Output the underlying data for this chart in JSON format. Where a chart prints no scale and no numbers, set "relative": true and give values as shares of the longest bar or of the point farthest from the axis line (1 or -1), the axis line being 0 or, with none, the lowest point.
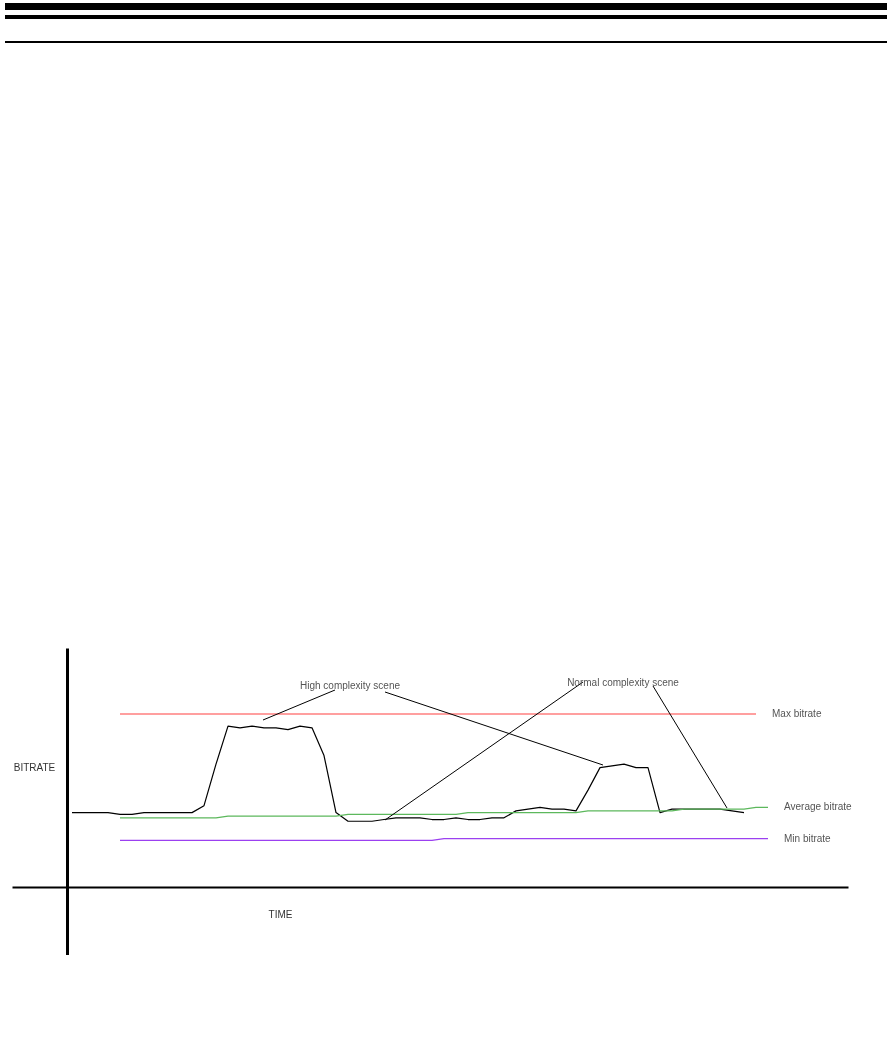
{
  "chart_data": {
    "type": "line",
    "relative": true,
    "xlabel": "TIME",
    "ylabel": "BITRATE",
    "categories": [
      null,
      null,
      null,
      null,
      null,
      null,
      null,
      null,
      null,
      null,
      null,
      null,
      null,
      null,
      null,
      null,
      null,
      null,
      null,
      null,
      null,
      null,
      null,
      null,
      null,
      null,
      null,
      null,
      null,
      null,
      null,
      null,
      null,
      null,
      null,
      null,
      null,
      null,
      null,
      null,
      null,
      null,
      null,
      null,
      null,
      null,
      null,
      null,
      null,
      null,
      null,
      null,
      null,
      null,
      null,
      null,
      null,
      null,
      null
    ],
    "series": [
      {
        "color": "#000000",
        "values": [
          0.43,
          0.43,
          0.43,
          0.43,
          0.42,
          0.42,
          0.43,
          0.43,
          0.43,
          0.43,
          0.43,
          0.47,
          0.71,
          0.93,
          0.92,
          0.93,
          0.92,
          0.92,
          0.91,
          0.93,
          0.92,
          0.76,
          0.43,
          0.38,
          0.38,
          0.38,
          0.39,
          0.4,
          0.4,
          0.4,
          0.39,
          0.39,
          0.4,
          0.39,
          0.39,
          0.4,
          0.4,
          0.44,
          0.45,
          0.46,
          0.45,
          0.45,
          0.44,
          0.56,
          0.69,
          0.7,
          0.71,
          0.69,
          0.69,
          0.43,
          0.45,
          0.45,
          0.45,
          0.45,
          0.45,
          0.44,
          0.43,
          null,
          null
        ]
      },
      {
        "name": "Max bitrate",
        "color": "#ff4040",
        "values": [
          null,
          null,
          null,
          null,
          1,
          1,
          1,
          1,
          1,
          1,
          1,
          1,
          1,
          1,
          1,
          1,
          1,
          1,
          1,
          1,
          1,
          1,
          1,
          1,
          1,
          1,
          1,
          1,
          1,
          1,
          1,
          1,
          1,
          1,
          1,
          1,
          1,
          1,
          1,
          1,
          1,
          1,
          1,
          1,
          1,
          1,
          1,
          1,
          1,
          1,
          1,
          1,
          1,
          1,
          1,
          1,
          1,
          1,
          null
        ]
      },
      {
        "name": "Average bitrate",
        "color": "#5cb85c",
        "values": [
          null,
          null,
          null,
          null,
          0.4,
          0.4,
          0.4,
          0.4,
          0.4,
          0.4,
          0.4,
          0.4,
          0.4,
          0.41,
          0.41,
          0.41,
          0.41,
          0.41,
          0.41,
          0.41,
          0.41,
          0.41,
          0.41,
          0.42,
          0.42,
          0.42,
          0.42,
          0.42,
          0.42,
          0.42,
          0.42,
          0.42,
          0.42,
          0.43,
          0.43,
          0.43,
          0.43,
          0.43,
          0.43,
          0.43,
          0.43,
          0.43,
          0.43,
          0.44,
          0.44,
          0.44,
          0.44,
          0.44,
          0.44,
          0.44,
          0.44,
          0.45,
          0.45,
          0.45,
          0.45,
          0.45,
          0.45,
          0.46,
          0.46
        ]
      },
      {
        "name": "Min bitrate",
        "color": "#9b40f0",
        "values": [
          null,
          null,
          null,
          null,
          0.27,
          0.27,
          0.27,
          0.27,
          0.27,
          0.27,
          0.27,
          0.27,
          0.27,
          0.27,
          0.27,
          0.27,
          0.27,
          0.27,
          0.27,
          0.27,
          0.27,
          0.27,
          0.27,
          0.27,
          0.27,
          0.27,
          0.27,
          0.27,
          0.27,
          0.27,
          0.27,
          0.28,
          0.28,
          0.28,
          0.28,
          0.28,
          0.28,
          0.28,
          0.28,
          0.28,
          0.28,
          0.28,
          0.28,
          0.28,
          0.28,
          0.28,
          0.28,
          0.28,
          0.28,
          0.28,
          0.28,
          0.28,
          0.28,
          0.28,
          0.28,
          0.28,
          0.28,
          0.28,
          0.28
        ]
      }
    ],
    "annotations": [
      "High complexity scene",
      "Normal complexity scene"
    ]
  }
}
